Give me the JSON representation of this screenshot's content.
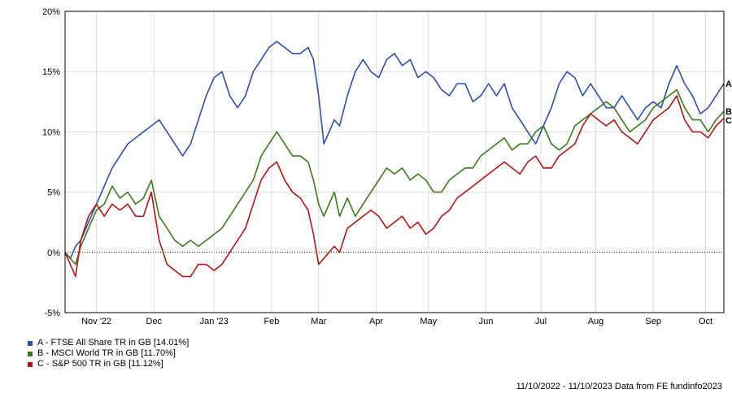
{
  "chart_data": {
    "type": "line",
    "y_unit": "%",
    "ylim": [
      -5,
      20
    ],
    "y_ticks": [
      "20%",
      "15%",
      "10%",
      "5%",
      "0%",
      "-5%"
    ],
    "y_tick_values": [
      20,
      15,
      10,
      5,
      0,
      -5
    ],
    "x_ticks": [
      "Nov '22",
      "Dec",
      "Jan '23",
      "Feb",
      "Mar",
      "Apr",
      "May",
      "Jun",
      "Jul",
      "Aug",
      "Sep",
      "Oct"
    ],
    "x_tick_values": [
      0.6,
      1.7,
      2.85,
      3.95,
      4.85,
      5.95,
      6.95,
      8.05,
      9.1,
      10.15,
      11.25,
      12.25
    ],
    "x_range": [
      0,
      12.6
    ],
    "grid": true,
    "zero_line": "dotted",
    "legend_position": "bottom-left",
    "series": [
      {
        "name": "A - FTSE All Share TR in GB [14.01%]",
        "marker": "A",
        "color": "#2e4eaa",
        "x": [
          0,
          0.1,
          0.2,
          0.3,
          0.45,
          0.6,
          0.75,
          0.9,
          1.05,
          1.2,
          1.35,
          1.5,
          1.65,
          1.8,
          1.95,
          2.1,
          2.25,
          2.4,
          2.55,
          2.7,
          2.85,
          3.0,
          3.15,
          3.3,
          3.45,
          3.6,
          3.75,
          3.9,
          4.05,
          4.2,
          4.35,
          4.5,
          4.65,
          4.75,
          4.85,
          4.95,
          5.05,
          5.15,
          5.25,
          5.4,
          5.55,
          5.7,
          5.85,
          6.0,
          6.15,
          6.3,
          6.45,
          6.6,
          6.75,
          6.9,
          7.05,
          7.2,
          7.35,
          7.5,
          7.65,
          7.8,
          7.95,
          8.1,
          8.25,
          8.4,
          8.55,
          8.7,
          8.85,
          9.0,
          9.15,
          9.3,
          9.45,
          9.6,
          9.75,
          9.9,
          10.05,
          10.2,
          10.35,
          10.5,
          10.65,
          10.8,
          10.95,
          11.1,
          11.25,
          11.4,
          11.55,
          11.7,
          11.85,
          12.0,
          12.15,
          12.3,
          12.45,
          12.6
        ],
        "values": [
          0,
          -0.5,
          0.5,
          1,
          2.5,
          4,
          5.5,
          7,
          8,
          9,
          9.5,
          10,
          10.5,
          11,
          10,
          9,
          8,
          9,
          11,
          13,
          14.5,
          15,
          13,
          12,
          13,
          15,
          16,
          17,
          17.5,
          17,
          16.5,
          16.5,
          17,
          16,
          13,
          9,
          10,
          11,
          10.5,
          13,
          15,
          16,
          15,
          14.5,
          16,
          16.5,
          15.5,
          16,
          14.5,
          15,
          14.5,
          13.5,
          13,
          14,
          14,
          12.5,
          13,
          14,
          13,
          14,
          12,
          11,
          10,
          9,
          10.5,
          12,
          14,
          15,
          14.5,
          13,
          14,
          13,
          12,
          12,
          13,
          12,
          11,
          12,
          12.5,
          12,
          14,
          15.5,
          14,
          13,
          11.5,
          12,
          13,
          14.01
        ]
      },
      {
        "name": "B - MSCI World TR in GB [11.70%]",
        "marker": "B",
        "color": "#3b7a1e",
        "x": [
          0,
          0.1,
          0.2,
          0.3,
          0.45,
          0.6,
          0.75,
          0.9,
          1.05,
          1.2,
          1.35,
          1.5,
          1.65,
          1.8,
          1.95,
          2.1,
          2.25,
          2.4,
          2.55,
          2.7,
          2.85,
          3.0,
          3.15,
          3.3,
          3.45,
          3.6,
          3.75,
          3.9,
          4.05,
          4.2,
          4.35,
          4.5,
          4.65,
          4.75,
          4.85,
          4.95,
          5.05,
          5.15,
          5.25,
          5.4,
          5.55,
          5.7,
          5.85,
          6.0,
          6.15,
          6.3,
          6.45,
          6.6,
          6.75,
          6.9,
          7.05,
          7.2,
          7.35,
          7.5,
          7.65,
          7.8,
          7.95,
          8.1,
          8.25,
          8.4,
          8.55,
          8.7,
          8.85,
          9.0,
          9.15,
          9.3,
          9.45,
          9.6,
          9.75,
          9.9,
          10.05,
          10.2,
          10.35,
          10.5,
          10.65,
          10.8,
          10.95,
          11.1,
          11.25,
          11.4,
          11.55,
          11.7,
          11.85,
          12.0,
          12.15,
          12.3,
          12.45,
          12.6
        ],
        "values": [
          0,
          -0.5,
          -1,
          0.5,
          2,
          3.5,
          4,
          5.5,
          4.5,
          5,
          4,
          4.5,
          6,
          3,
          2,
          1,
          0.5,
          1,
          0.5,
          1,
          1.5,
          2,
          3,
          4,
          5,
          6,
          8,
          9,
          10,
          9,
          8,
          8,
          7.5,
          6,
          4,
          3,
          4,
          5,
          3,
          4.5,
          3,
          4,
          5,
          6,
          7,
          6.5,
          7,
          6,
          6.5,
          6,
          5,
          5,
          6,
          6.5,
          7,
          7,
          8,
          8.5,
          9,
          9.5,
          8.5,
          9,
          9,
          10,
          10.5,
          9,
          8.5,
          9,
          10.5,
          11,
          11.5,
          12,
          12.5,
          12,
          11,
          10,
          10.5,
          11,
          12,
          12.5,
          13,
          13.5,
          12,
          11,
          11,
          10,
          11,
          11.7
        ]
      },
      {
        "name": "C - S&P 500 TR in GB [11.12%]",
        "marker": "C",
        "color": "#b01515",
        "x": [
          0,
          0.1,
          0.2,
          0.3,
          0.45,
          0.6,
          0.75,
          0.9,
          1.05,
          1.2,
          1.35,
          1.5,
          1.65,
          1.8,
          1.95,
          2.1,
          2.25,
          2.4,
          2.55,
          2.7,
          2.85,
          3.0,
          3.15,
          3.3,
          3.45,
          3.6,
          3.75,
          3.9,
          4.05,
          4.2,
          4.35,
          4.5,
          4.65,
          4.75,
          4.85,
          4.95,
          5.05,
          5.15,
          5.25,
          5.4,
          5.55,
          5.7,
          5.85,
          6.0,
          6.15,
          6.3,
          6.45,
          6.6,
          6.75,
          6.9,
          7.05,
          7.2,
          7.35,
          7.5,
          7.65,
          7.8,
          7.95,
          8.1,
          8.25,
          8.4,
          8.55,
          8.7,
          8.85,
          9.0,
          9.15,
          9.3,
          9.45,
          9.6,
          9.75,
          9.9,
          10.05,
          10.2,
          10.35,
          10.5,
          10.65,
          10.8,
          10.95,
          11.1,
          11.25,
          11.4,
          11.55,
          11.7,
          11.85,
          12.0,
          12.15,
          12.3,
          12.45,
          12.6
        ],
        "values": [
          0,
          -1,
          -2,
          1,
          3,
          4,
          3,
          4,
          3.5,
          4,
          3,
          3,
          5,
          1,
          -1,
          -1.5,
          -2,
          -2,
          -1,
          -1,
          -1.5,
          -1,
          0,
          1,
          2,
          4,
          6,
          7,
          7.5,
          6,
          5,
          4.5,
          3.5,
          1.5,
          -1,
          -0.5,
          0,
          0.5,
          0,
          2,
          2.5,
          3,
          3.5,
          3,
          2,
          2.5,
          3,
          2,
          2.5,
          1.5,
          2,
          3,
          3.5,
          4.5,
          5,
          5.5,
          6,
          6.5,
          7,
          7.5,
          7,
          6.5,
          7.5,
          8,
          7,
          7,
          8,
          8.5,
          9,
          10.5,
          11.5,
          11,
          10.5,
          11,
          10,
          9.5,
          9,
          10,
          11,
          11.5,
          12,
          13,
          11,
          10,
          10,
          9.5,
          10.5,
          11.12
        ]
      }
    ]
  },
  "footer": {
    "text": "11/10/2022 - 11/10/2023 Data from FE fundinfo2023"
  }
}
